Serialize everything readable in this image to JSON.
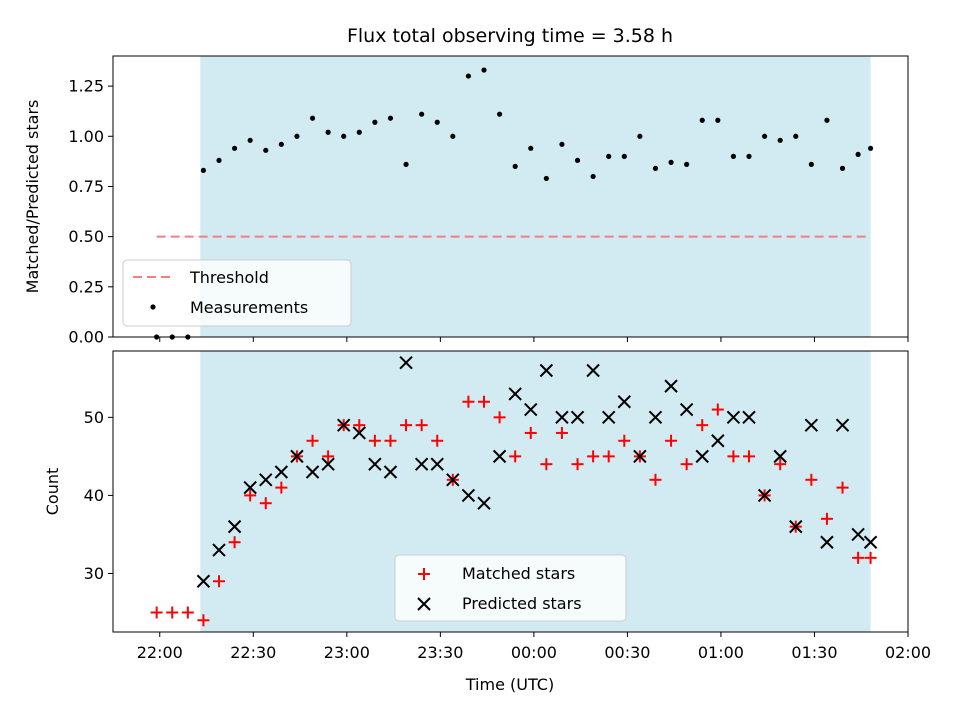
{
  "chart_data": [
    {
      "type": "scatter",
      "title": "Flux total observing time = 3.58 h",
      "xlabel": "",
      "ylabel": "Matched/Predicted stars",
      "xlim": [
        "21:45",
        "02:00"
      ],
      "ylim": [
        0,
        1.4
      ],
      "yticks": [
        "0.00",
        "0.25",
        "0.50",
        "0.75",
        "1.00",
        "1.25"
      ],
      "shaded_region": {
        "x_start": "22:13",
        "x_end": "01:48",
        "color": "#add8e6"
      },
      "threshold": {
        "name": "Threshold",
        "y": 0.5,
        "x_start": "21:59",
        "x_end": "01:48",
        "color": "#f08080"
      },
      "legend": {
        "placement": "lower-left",
        "entries": [
          "Threshold",
          "Measurements"
        ]
      },
      "series": [
        {
          "name": "Measurements",
          "color": "#000000",
          "x": [
            "21:59",
            "22:04",
            "22:09",
            "22:14",
            "22:19",
            "22:24",
            "22:29",
            "22:34",
            "22:39",
            "22:44",
            "22:49",
            "22:54",
            "22:59",
            "23:04",
            "23:09",
            "23:14",
            "23:19",
            "23:24",
            "23:29",
            "23:34",
            "23:39",
            "23:44",
            "23:49",
            "23:54",
            "23:59",
            "00:04",
            "00:09",
            "00:14",
            "00:19",
            "00:24",
            "00:29",
            "00:34",
            "00:39",
            "00:44",
            "00:49",
            "00:54",
            "00:59",
            "01:04",
            "01:09",
            "01:14",
            "01:19",
            "01:24",
            "01:29",
            "01:34",
            "01:39",
            "01:44",
            "01:48"
          ],
          "y": [
            0.0,
            0.0,
            0.0,
            0.83,
            0.88,
            0.94,
            0.98,
            0.93,
            0.96,
            1.0,
            1.09,
            1.02,
            1.0,
            1.02,
            1.07,
            1.09,
            0.86,
            1.11,
            1.07,
            1.0,
            1.3,
            1.33,
            1.11,
            0.85,
            0.94,
            0.79,
            0.96,
            0.88,
            0.8,
            0.9,
            0.9,
            1.0,
            0.84,
            0.87,
            0.86,
            1.08,
            1.08,
            0.9,
            0.9,
            1.0,
            0.98,
            1.0,
            0.86,
            1.08,
            0.84,
            0.91,
            0.94
          ]
        }
      ]
    },
    {
      "type": "scatter",
      "title": "",
      "xlabel": "Time (UTC)",
      "ylabel": "Count",
      "xlim": [
        "21:45",
        "02:00"
      ],
      "ylim": [
        22.5,
        58.5
      ],
      "yticks": [
        "30",
        "40",
        "50"
      ],
      "xticks": [
        "22:00",
        "22:30",
        "23:00",
        "23:30",
        "00:00",
        "00:30",
        "01:00",
        "01:30",
        "02:00"
      ],
      "shaded_region": {
        "x_start": "22:13",
        "x_end": "01:48",
        "color": "#add8e6"
      },
      "legend": {
        "placement": "lower-center",
        "entries": [
          "Matched stars",
          "Predicted stars"
        ]
      },
      "series": [
        {
          "name": "Matched stars",
          "marker": "+",
          "color": "#ff0000",
          "x": [
            "21:59",
            "22:04",
            "22:09",
            "22:14",
            "22:19",
            "22:24",
            "22:29",
            "22:34",
            "22:39",
            "22:44",
            "22:49",
            "22:54",
            "22:59",
            "23:04",
            "23:09",
            "23:14",
            "23:19",
            "23:24",
            "23:29",
            "23:34",
            "23:39",
            "23:44",
            "23:49",
            "23:54",
            "23:59",
            "00:04",
            "00:09",
            "00:14",
            "00:19",
            "00:24",
            "00:29",
            "00:34",
            "00:39",
            "00:44",
            "00:49",
            "00:54",
            "00:59",
            "01:04",
            "01:09",
            "01:14",
            "01:19",
            "01:24",
            "01:29",
            "01:34",
            "01:39",
            "01:44",
            "01:48"
          ],
          "y": [
            25,
            25,
            25,
            24,
            29,
            34,
            40,
            39,
            41,
            45,
            47,
            45,
            49,
            49,
            47,
            47,
            49,
            49,
            47,
            42,
            52,
            52,
            50,
            45,
            48,
            44,
            48,
            44,
            45,
            45,
            47,
            45,
            42,
            47,
            44,
            49,
            51,
            45,
            45,
            40,
            44,
            36,
            42,
            37,
            41,
            32,
            32
          ]
        },
        {
          "name": "Predicted stars",
          "marker": "x",
          "color": "#000000",
          "x": [
            "22:14",
            "22:19",
            "22:24",
            "22:29",
            "22:34",
            "22:39",
            "22:44",
            "22:49",
            "22:54",
            "22:59",
            "23:04",
            "23:09",
            "23:14",
            "23:19",
            "23:24",
            "23:29",
            "23:34",
            "23:39",
            "23:44",
            "23:49",
            "23:54",
            "23:59",
            "00:04",
            "00:09",
            "00:14",
            "00:19",
            "00:24",
            "00:29",
            "00:34",
            "00:39",
            "00:44",
            "00:49",
            "00:54",
            "00:59",
            "01:04",
            "01:09",
            "01:14",
            "01:19",
            "01:24",
            "01:29",
            "01:34",
            "01:39",
            "01:44",
            "01:48"
          ],
          "y": [
            29,
            33,
            36,
            41,
            42,
            43,
            45,
            43,
            44,
            49,
            48,
            44,
            43,
            57,
            44,
            44,
            42,
            40,
            39,
            45,
            53,
            51,
            56,
            50,
            50,
            56,
            50,
            52,
            45,
            50,
            54,
            51,
            45,
            47,
            50,
            50,
            40,
            45,
            36,
            49,
            34,
            49,
            35,
            34
          ]
        }
      ]
    }
  ]
}
